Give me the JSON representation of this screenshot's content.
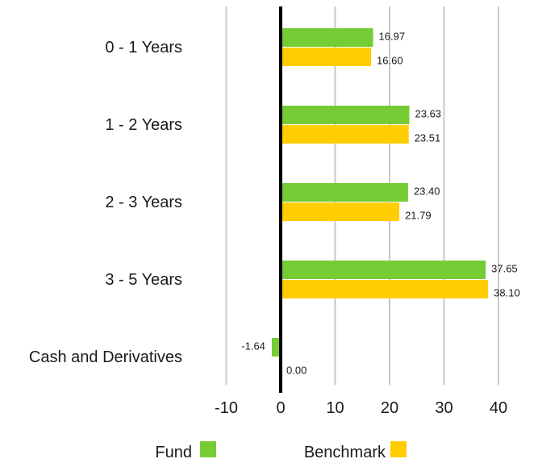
{
  "chart_data": {
    "type": "bar",
    "orientation": "horizontal",
    "categories": [
      "0 - 1 Years",
      "1 - 2 Years",
      "2 - 3 Years",
      "3 - 5 Years",
      "Cash and Derivatives"
    ],
    "series": [
      {
        "name": "Fund",
        "color": "#76cc35",
        "values": [
          16.97,
          23.63,
          23.4,
          37.65,
          -1.64
        ],
        "labels": [
          "16.97",
          "23.63",
          "23.40",
          "37.65",
          "-1.64"
        ]
      },
      {
        "name": "Benchmark",
        "color": "#ffcd00",
        "values": [
          16.6,
          23.51,
          21.79,
          38.1,
          0.0
        ],
        "labels": [
          "16.60",
          "23.51",
          "21.79",
          "38.10",
          "0.00"
        ]
      }
    ],
    "xlim": [
      -10,
      40
    ],
    "xticks": [
      -10,
      0,
      10,
      20,
      30,
      40
    ],
    "grid": "vertical",
    "legend_position": "bottom"
  }
}
